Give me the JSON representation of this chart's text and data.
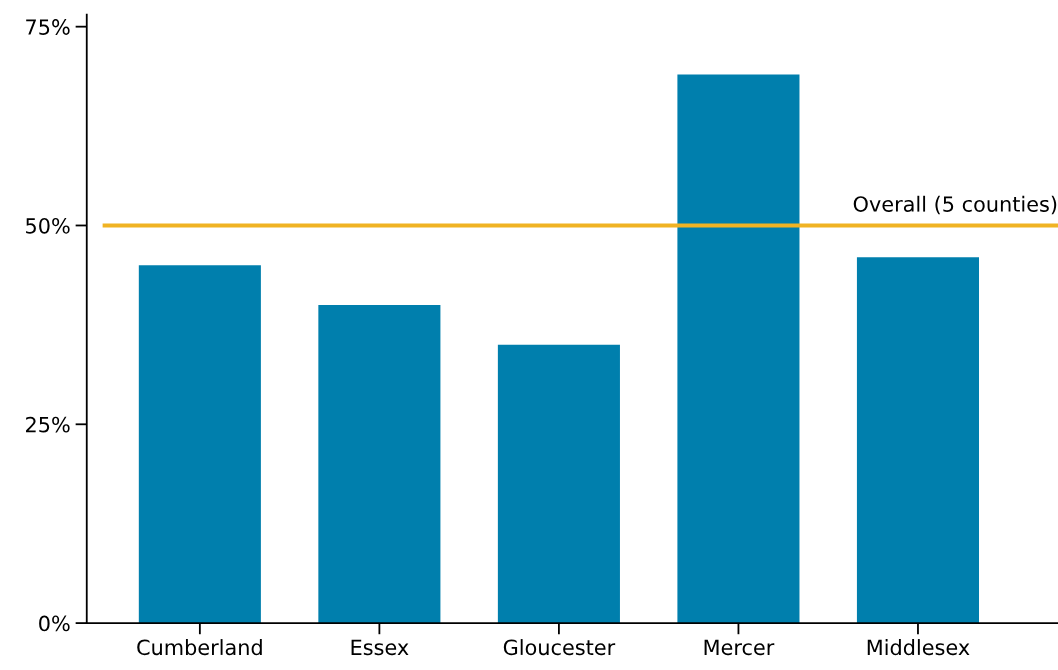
{
  "chart_data": {
    "type": "bar",
    "categories": [
      "Cumberland",
      "Essex",
      "Gloucester",
      "Mercer",
      "Middlesex"
    ],
    "values": [
      45,
      40,
      35,
      69,
      46
    ],
    "color": "#007fad",
    "ylim": [
      0,
      76.5
    ],
    "yticks": [
      {
        "value": 0,
        "label": "0%"
      },
      {
        "value": 25,
        "label": "25%"
      },
      {
        "value": 50,
        "label": "50%"
      },
      {
        "value": 75,
        "label": "75%"
      }
    ],
    "ref_lines": [
      {
        "axis": "y",
        "value": 50,
        "label": "Overall (5 counties)",
        "color": "#f0b323"
      }
    ],
    "grid": false,
    "legend": false
  }
}
